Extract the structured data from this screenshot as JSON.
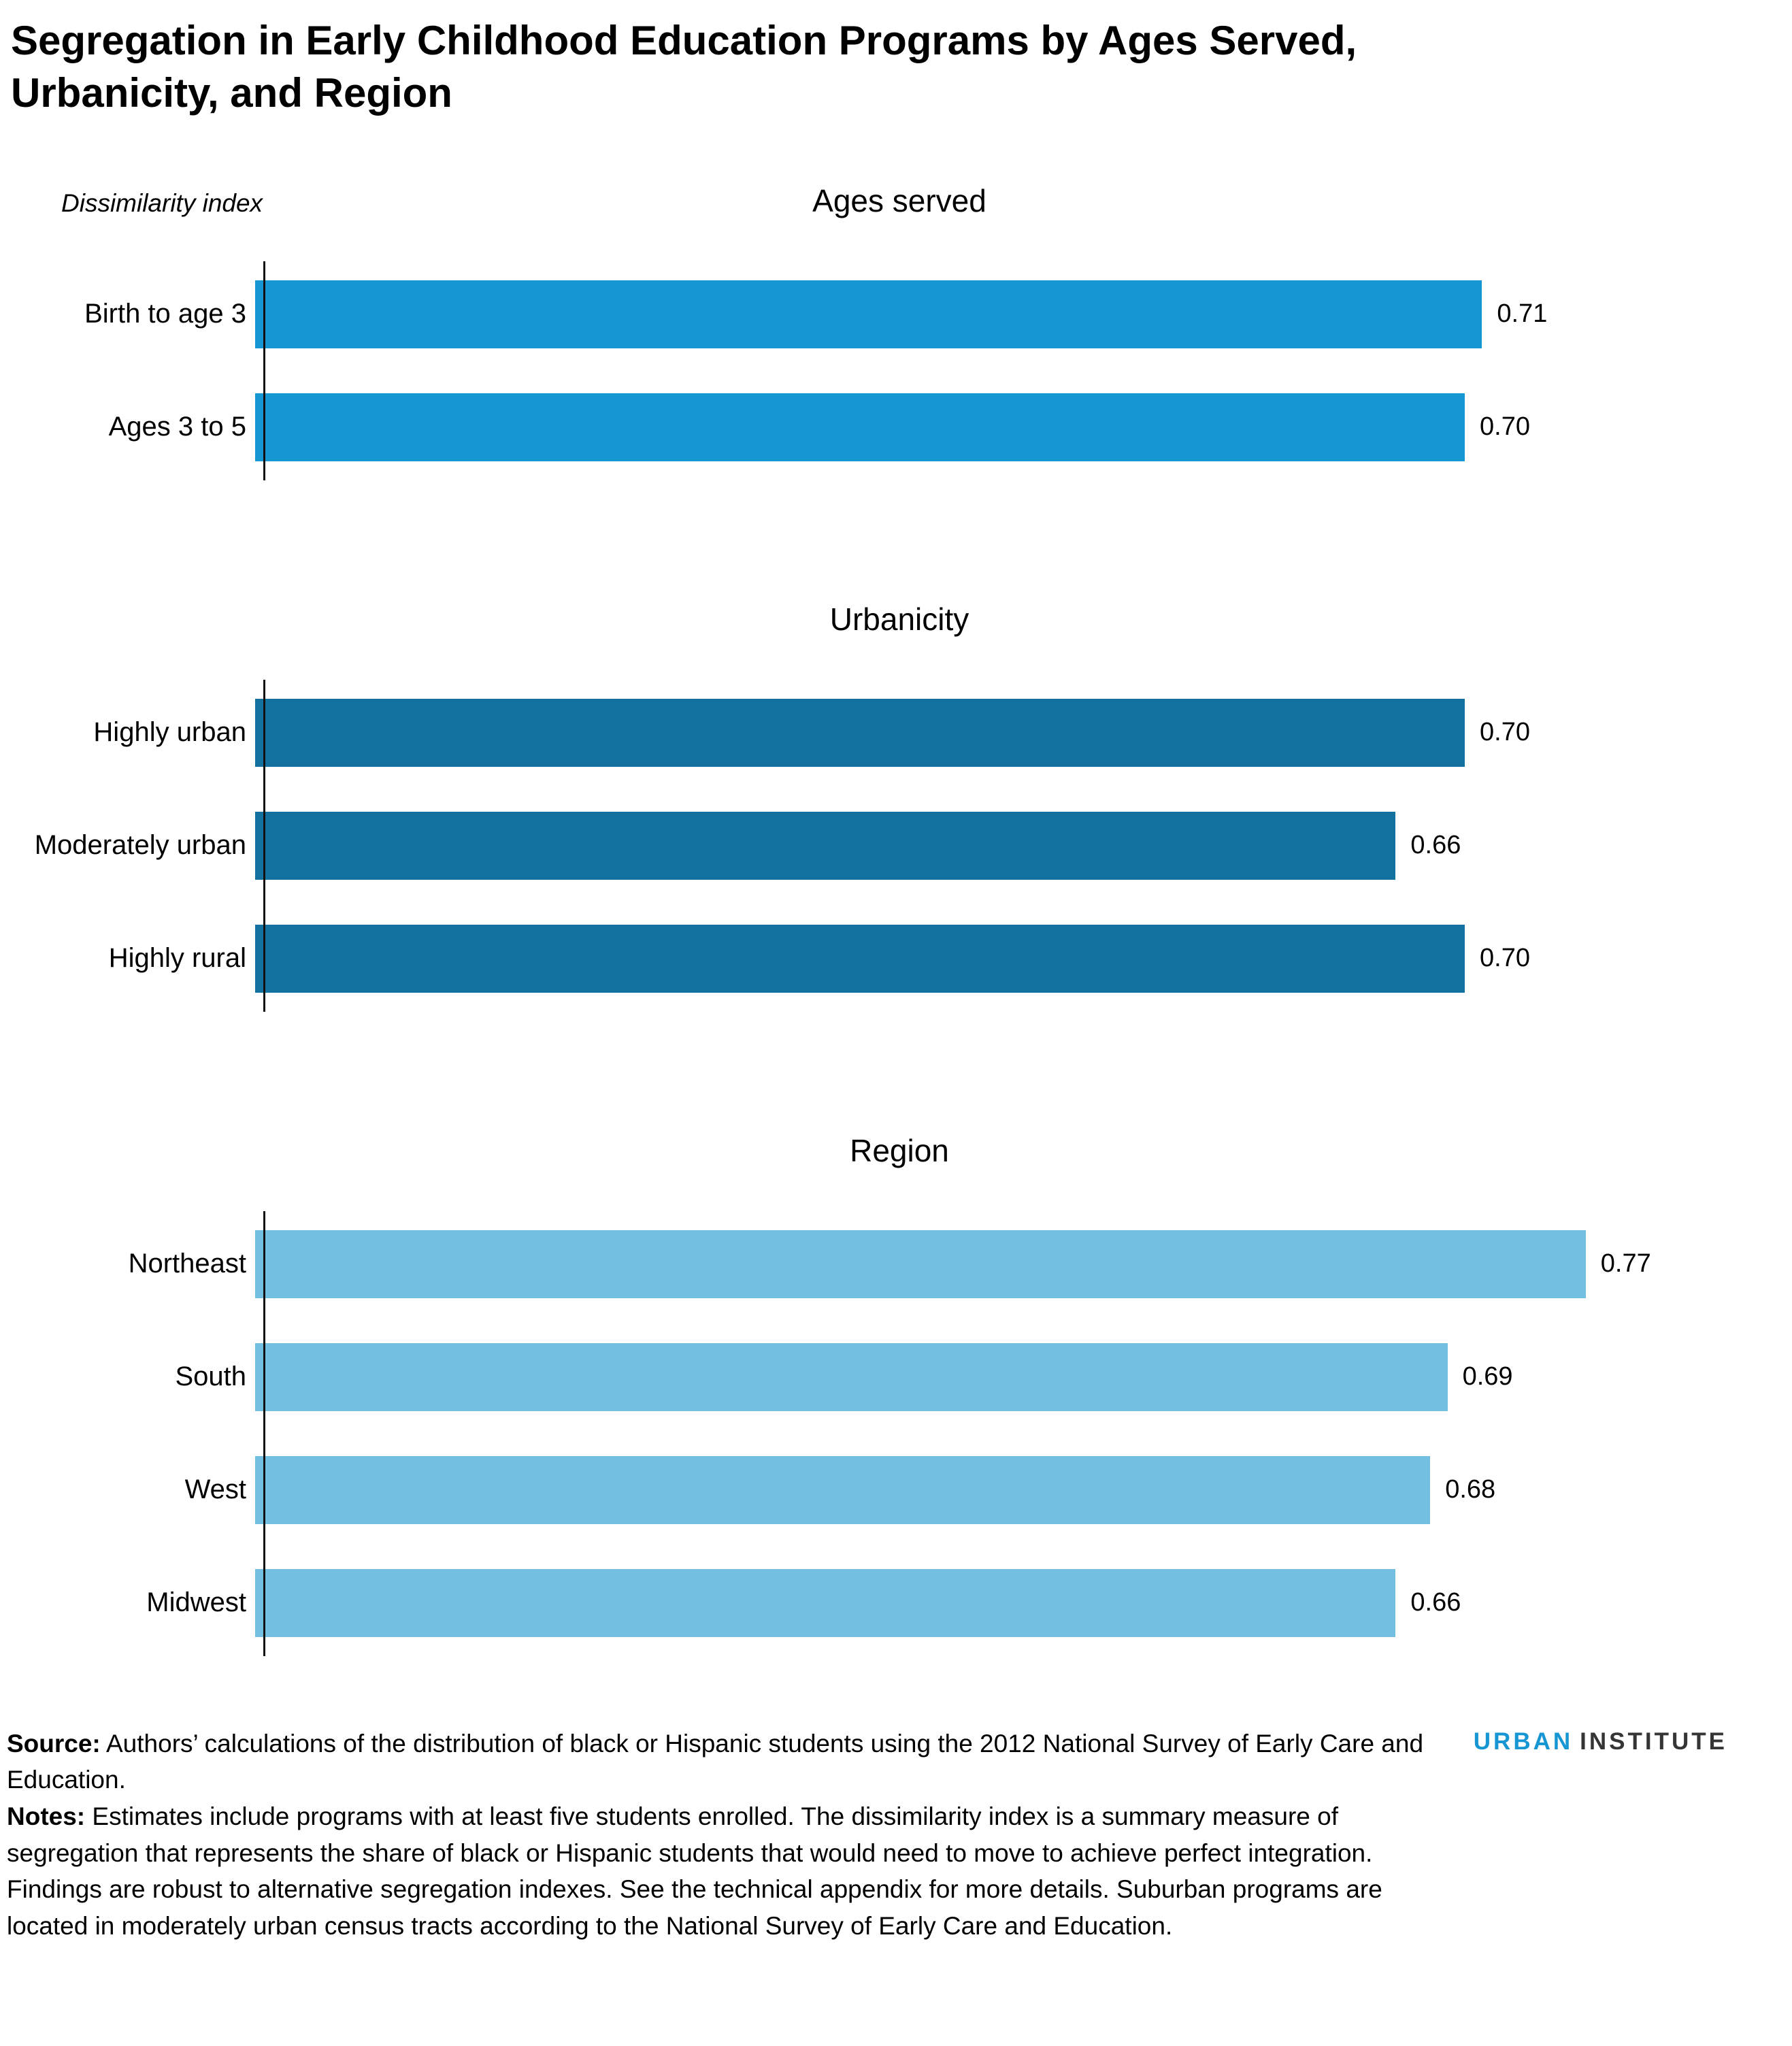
{
  "title": "Segregation in Early Childhood Education Programs by Ages Served, Urbanicity, and Region",
  "axis_label": "Dissimilarity index",
  "chart_data": [
    {
      "type": "bar",
      "orientation": "horizontal",
      "title": "Ages served",
      "categories": [
        "Birth to age 3",
        "Ages 3 to 5"
      ],
      "values": [
        0.71,
        0.7
      ],
      "bar_color": "#1696d2",
      "xlim": [
        0,
        0.85
      ],
      "grid": false,
      "legend": "none",
      "value_labels": "end-of-bar, 2 decimals"
    },
    {
      "type": "bar",
      "orientation": "horizontal",
      "title": "Urbanicity",
      "categories": [
        "Highly urban",
        "Moderately urban",
        "Highly rural"
      ],
      "values": [
        0.7,
        0.66,
        0.7
      ],
      "bar_color": "#12719e",
      "xlim": [
        0,
        0.85
      ],
      "grid": false,
      "legend": "none",
      "value_labels": "end-of-bar, 2 decimals"
    },
    {
      "type": "bar",
      "orientation": "horizontal",
      "title": "Region",
      "categories": [
        "Northeast",
        "South",
        "West",
        "Midwest"
      ],
      "values": [
        0.77,
        0.69,
        0.68,
        0.66
      ],
      "bar_color": "#73bfe2",
      "xlim": [
        0,
        0.85
      ],
      "grid": false,
      "legend": "none",
      "value_labels": "end-of-bar, 2 decimals"
    }
  ],
  "footer": {
    "source_label": "Source:",
    "source_text": " Authors’ calculations of the distribution of black or Hispanic students using the 2012 National Survey of Early Care and Education.",
    "notes_label": "Notes:",
    "notes_text": " Estimates include programs with at least five students enrolled. The dissimilarity index is a summary measure of segregation that represents the share of black or Hispanic students that would need to move to achieve perfect integration. Findings are robust to alternative segregation indexes. See the technical appendix for more details. Suburban programs are located in moderately urban census tracts according to the National Survey of Early Care and Education.",
    "logo": {
      "part1": "URBAN",
      "part2": "INSTITUTE"
    }
  },
  "colors": {
    "ages_served_bar": "#1696d2",
    "urbanicity_bar": "#12719e",
    "region_bar": "#73bfe2",
    "axis": "#111111",
    "text": "#000000",
    "logo_urban": "#1696d2",
    "logo_institute": "#353535"
  }
}
